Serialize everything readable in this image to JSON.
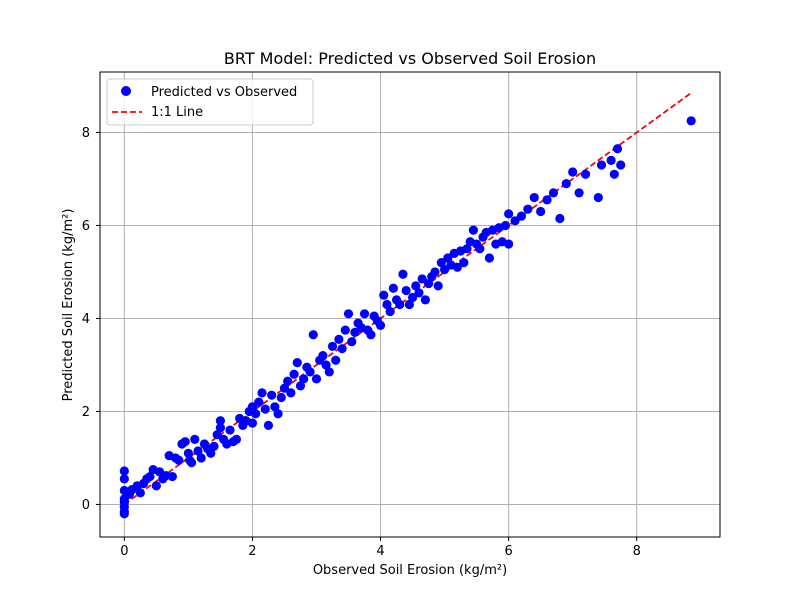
{
  "chart_data": {
    "type": "scatter",
    "title": "BRT Model: Predicted vs Observed Soil Erosion",
    "xlabel": "Observed Soil Erosion (kg/m²)",
    "ylabel": "Predicted Soil Erosion (kg/m²)",
    "xlim": [
      -0.38,
      9.3
    ],
    "ylim": [
      -0.7,
      9.3
    ],
    "x_ticks": [
      0,
      2,
      4,
      6,
      8
    ],
    "y_ticks": [
      0,
      2,
      4,
      6,
      8
    ],
    "grid": true,
    "legend_position": "top-left",
    "series": [
      {
        "name": "Predicted vs Observed",
        "kind": "scatter",
        "color": "#0000ff",
        "points": [
          [
            0.0,
            0.72
          ],
          [
            0.0,
            0.55
          ],
          [
            0.0,
            0.3
          ],
          [
            0.0,
            0.12
          ],
          [
            0.0,
            -0.05
          ],
          [
            0.0,
            -0.15
          ],
          [
            0.0,
            -0.2
          ],
          [
            0.0,
            0.05
          ],
          [
            0.08,
            0.22
          ],
          [
            0.12,
            0.32
          ],
          [
            0.2,
            0.4
          ],
          [
            0.25,
            0.25
          ],
          [
            0.3,
            0.45
          ],
          [
            0.35,
            0.55
          ],
          [
            0.4,
            0.6
          ],
          [
            0.45,
            0.75
          ],
          [
            0.5,
            0.4
          ],
          [
            0.55,
            0.7
          ],
          [
            0.6,
            0.55
          ],
          [
            0.65,
            0.62
          ],
          [
            0.7,
            1.05
          ],
          [
            0.75,
            0.6
          ],
          [
            0.8,
            1.0
          ],
          [
            0.85,
            0.95
          ],
          [
            0.9,
            1.3
          ],
          [
            0.95,
            1.35
          ],
          [
            1.0,
            1.1
          ],
          [
            1.02,
            0.95
          ],
          [
            1.05,
            0.9
          ],
          [
            1.1,
            1.4
          ],
          [
            1.15,
            1.15
          ],
          [
            1.2,
            1.0
          ],
          [
            1.25,
            1.3
          ],
          [
            1.3,
            1.2
          ],
          [
            1.35,
            1.1
          ],
          [
            1.4,
            1.25
          ],
          [
            1.45,
            1.5
          ],
          [
            1.5,
            1.8
          ],
          [
            1.5,
            1.65
          ],
          [
            1.55,
            1.4
          ],
          [
            1.6,
            1.3
          ],
          [
            1.65,
            1.6
          ],
          [
            1.7,
            1.35
          ],
          [
            1.75,
            1.4
          ],
          [
            1.8,
            1.85
          ],
          [
            1.85,
            1.7
          ],
          [
            1.9,
            1.8
          ],
          [
            1.95,
            2.0
          ],
          [
            2.0,
            1.75
          ],
          [
            2.0,
            2.1
          ],
          [
            2.05,
            1.95
          ],
          [
            2.1,
            2.2
          ],
          [
            2.15,
            2.4
          ],
          [
            2.2,
            2.05
          ],
          [
            2.25,
            1.7
          ],
          [
            2.3,
            2.35
          ],
          [
            2.35,
            2.1
          ],
          [
            2.4,
            1.95
          ],
          [
            2.45,
            2.3
          ],
          [
            2.5,
            2.5
          ],
          [
            2.55,
            2.65
          ],
          [
            2.6,
            2.4
          ],
          [
            2.65,
            2.8
          ],
          [
            2.7,
            3.05
          ],
          [
            2.75,
            2.55
          ],
          [
            2.8,
            2.7
          ],
          [
            2.85,
            2.95
          ],
          [
            2.9,
            2.85
          ],
          [
            2.95,
            3.65
          ],
          [
            3.0,
            2.7
          ],
          [
            3.05,
            3.1
          ],
          [
            3.1,
            3.2
          ],
          [
            3.15,
            3.0
          ],
          [
            3.2,
            2.85
          ],
          [
            3.25,
            3.4
          ],
          [
            3.3,
            3.1
          ],
          [
            3.35,
            3.55
          ],
          [
            3.4,
            3.35
          ],
          [
            3.45,
            3.75
          ],
          [
            3.5,
            4.1
          ],
          [
            3.55,
            3.5
          ],
          [
            3.6,
            3.7
          ],
          [
            3.65,
            3.9
          ],
          [
            3.7,
            3.8
          ],
          [
            3.75,
            4.1
          ],
          [
            3.8,
            3.75
          ],
          [
            3.85,
            3.65
          ],
          [
            3.9,
            4.05
          ],
          [
            3.95,
            3.95
          ],
          [
            4.0,
            3.85
          ],
          [
            4.05,
            4.5
          ],
          [
            4.1,
            4.3
          ],
          [
            4.15,
            4.15
          ],
          [
            4.2,
            4.65
          ],
          [
            4.25,
            4.4
          ],
          [
            4.3,
            4.3
          ],
          [
            4.35,
            4.95
          ],
          [
            4.4,
            4.6
          ],
          [
            4.45,
            4.3
          ],
          [
            4.5,
            4.45
          ],
          [
            4.55,
            4.7
          ],
          [
            4.6,
            4.55
          ],
          [
            4.65,
            4.85
          ],
          [
            4.7,
            4.4
          ],
          [
            4.75,
            4.75
          ],
          [
            4.8,
            4.9
          ],
          [
            4.85,
            5.0
          ],
          [
            4.9,
            4.7
          ],
          [
            4.95,
            5.2
          ],
          [
            5.0,
            5.05
          ],
          [
            5.05,
            5.3
          ],
          [
            5.1,
            5.15
          ],
          [
            5.15,
            5.4
          ],
          [
            5.2,
            5.1
          ],
          [
            5.25,
            5.45
          ],
          [
            5.3,
            5.2
          ],
          [
            5.35,
            5.5
          ],
          [
            5.4,
            5.65
          ],
          [
            5.45,
            5.9
          ],
          [
            5.5,
            5.6
          ],
          [
            5.55,
            5.5
          ],
          [
            5.6,
            5.75
          ],
          [
            5.65,
            5.85
          ],
          [
            5.7,
            5.3
          ],
          [
            5.75,
            5.9
          ],
          [
            5.8,
            5.6
          ],
          [
            5.85,
            5.95
          ],
          [
            5.9,
            5.65
          ],
          [
            5.95,
            6.0
          ],
          [
            6.0,
            5.6
          ],
          [
            6.0,
            6.25
          ],
          [
            6.1,
            6.1
          ],
          [
            6.2,
            6.2
          ],
          [
            6.3,
            6.35
          ],
          [
            6.4,
            6.6
          ],
          [
            6.5,
            6.3
          ],
          [
            6.6,
            6.55
          ],
          [
            6.7,
            6.7
          ],
          [
            6.8,
            6.15
          ],
          [
            6.9,
            6.9
          ],
          [
            7.0,
            7.15
          ],
          [
            7.1,
            6.7
          ],
          [
            7.2,
            7.1
          ],
          [
            7.4,
            6.6
          ],
          [
            7.45,
            7.3
          ],
          [
            7.6,
            7.4
          ],
          [
            7.65,
            7.1
          ],
          [
            7.7,
            7.65
          ],
          [
            7.75,
            7.3
          ],
          [
            8.85,
            8.25
          ]
        ]
      },
      {
        "name": "1:1 Line",
        "kind": "line",
        "color": "#ff0000",
        "dashed": true,
        "points": [
          [
            0.0,
            0.0
          ],
          [
            8.85,
            8.85
          ]
        ]
      }
    ]
  }
}
